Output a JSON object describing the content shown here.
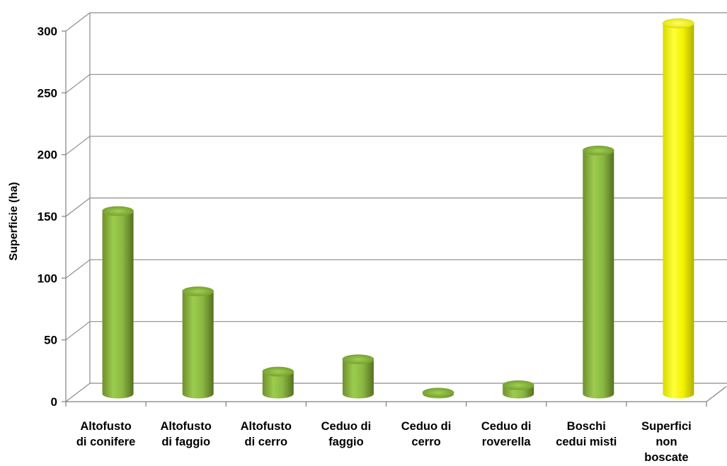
{
  "chart_data": {
    "type": "bar",
    "style": "3d-cylinder",
    "ylabel": "Superficie (ha)",
    "ylim": [
      0,
      300
    ],
    "yticks": [
      0,
      50,
      100,
      150,
      200,
      250,
      300
    ],
    "grid": true,
    "categories": [
      [
        "Altofusto",
        "di conifere"
      ],
      [
        "Altofusto",
        "di faggio"
      ],
      [
        "Altofusto",
        "di cerro"
      ],
      [
        "Ceduo di",
        "faggio"
      ],
      [
        "Ceduo di",
        "cerro"
      ],
      [
        "Ceduo di",
        "roverella"
      ],
      [
        "Boschi",
        "cedui misti"
      ],
      [
        "Superfici",
        "non",
        "boscate"
      ]
    ],
    "values": [
      148,
      83,
      18,
      28,
      1,
      7,
      197,
      300
    ],
    "colors": [
      "#8cb040",
      "#8cb040",
      "#8cb040",
      "#8cb040",
      "#8cb040",
      "#8cb040",
      "#8cb040",
      "#f2f200"
    ]
  }
}
